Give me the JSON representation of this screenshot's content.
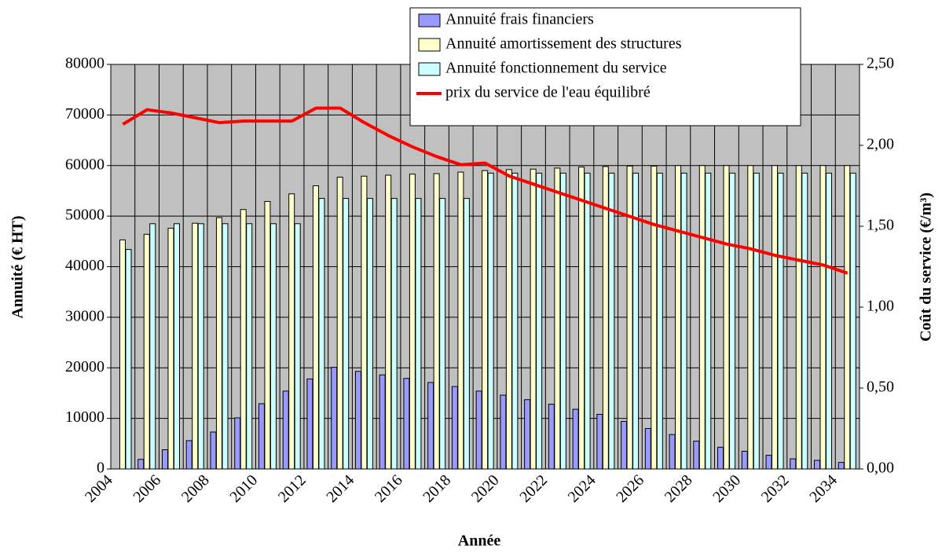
{
  "chart_data": {
    "type": "bar",
    "x_label": "Année",
    "y_label": "Annuité (€ HT)",
    "y2_label": "Coût du service (€/m³)",
    "categories": [
      "2004",
      null,
      "2006",
      null,
      "2008",
      null,
      "2010",
      null,
      "2012",
      null,
      "2014",
      null,
      "2016",
      null,
      "2018",
      null,
      "2020",
      null,
      "2022",
      null,
      "2024",
      null,
      "2026",
      null,
      "2028",
      null,
      "2030",
      null,
      "2032",
      null,
      "2034"
    ],
    "ylim": [
      0,
      80000
    ],
    "yticks": [
      0,
      10000,
      20000,
      30000,
      40000,
      50000,
      60000,
      70000,
      80000
    ],
    "y2lim": [
      0,
      2.5
    ],
    "y2ticks": [
      {
        "value": 0,
        "label": "0,00"
      },
      {
        "value": 0.5,
        "label": "0,50"
      },
      {
        "value": 1,
        "label": "1,00"
      },
      {
        "value": 1.5,
        "label": "1,50"
      },
      {
        "value": 2,
        "label": "2,00"
      },
      {
        "value": 2.5,
        "label": "2,50"
      }
    ],
    "grid": true,
    "series": [
      {
        "name": "Annuité frais financiers",
        "color": "#9999ff",
        "values": [
          0,
          1900,
          3800,
          5600,
          7300,
          10100,
          12900,
          15400,
          17800,
          20100,
          19300,
          18600,
          17900,
          17100,
          16300,
          15400,
          14600,
          13700,
          12800,
          11800,
          10800,
          9400,
          8000,
          6800,
          5500,
          4300,
          3500,
          2700,
          2000,
          1700,
          1300
        ]
      },
      {
        "name": "Annuité amortissement des structures",
        "color": "#ffffcc",
        "values": [
          45300,
          46400,
          47600,
          48600,
          49700,
          51300,
          52900,
          54400,
          56000,
          57700,
          57900,
          58100,
          58300,
          58400,
          58700,
          59000,
          59200,
          59300,
          59500,
          59700,
          59800,
          59900,
          59900,
          60000,
          60000,
          60000,
          60000,
          60000,
          60000,
          60000,
          60000
        ]
      },
      {
        "name": "Annuité fonctionnement du service",
        "color": "#ccffff",
        "values": [
          43400,
          48500,
          48500,
          48500,
          48500,
          48500,
          48500,
          48500,
          53500,
          53500,
          53500,
          53500,
          53500,
          53500,
          53500,
          58500,
          58500,
          58500,
          58500,
          58500,
          58500,
          58500,
          58500,
          58500,
          58500,
          58500,
          58500,
          58500,
          58500,
          58500,
          58500
        ]
      },
      {
        "name": "prix du service de l'eau équilibré",
        "color": "#ff0000",
        "type": "line",
        "axis": "y2",
        "values": [
          2.13,
          2.22,
          2.2,
          2.17,
          2.14,
          2.15,
          2.15,
          2.15,
          2.23,
          2.23,
          2.14,
          2.06,
          1.99,
          1.93,
          1.88,
          1.89,
          1.81,
          1.76,
          1.71,
          1.66,
          1.61,
          1.56,
          1.51,
          1.47,
          1.43,
          1.39,
          1.36,
          1.32,
          1.29,
          1.26,
          1.21
        ]
      }
    ]
  }
}
